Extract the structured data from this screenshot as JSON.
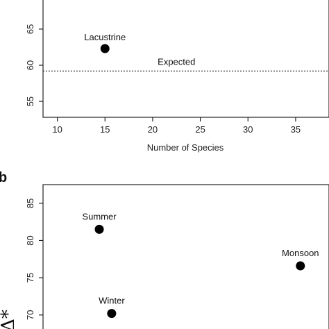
{
  "chart_data": [
    {
      "type": "scatter",
      "panel_label": "",
      "xlabel": "Number of Species",
      "ylabel": "",
      "xlim": [
        8.5,
        38.5
      ],
      "ylim": [
        52.8,
        69.5
      ],
      "x_ticks": [
        10,
        15,
        20,
        25,
        30,
        35
      ],
      "y_ticks": [
        55,
        60,
        65
      ],
      "points": [
        {
          "label": "Lacustrine",
          "x": 15,
          "y": 62.3
        }
      ],
      "reference_line": {
        "label": "Expected",
        "y": 59.2,
        "style": "dotted"
      },
      "grid": false
    },
    {
      "type": "scatter",
      "panel_label": "b",
      "xlabel": "",
      "ylabel": "Δ*",
      "xlim": [
        8.5,
        38.5
      ],
      "ylim": [
        67.0,
        87.5
      ],
      "y_ticks": [
        70,
        75,
        80,
        85
      ],
      "points": [
        {
          "label": "Summer",
          "x": 14.4,
          "y": 81.5
        },
        {
          "label": "Monsoon",
          "x": 35.5,
          "y": 76.6
        },
        {
          "label": "Winter",
          "x": 15.7,
          "y": 70.2
        }
      ],
      "grid": false
    }
  ]
}
